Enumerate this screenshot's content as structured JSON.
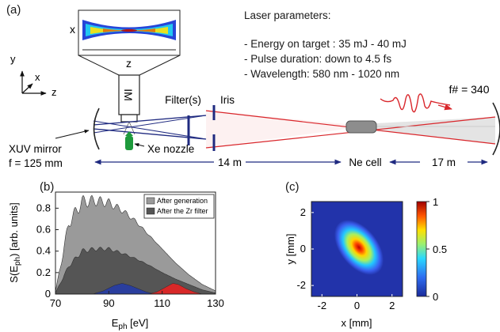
{
  "panel_a": {
    "label": "(a)",
    "laser_params": {
      "title": "Laser parameters:",
      "lines": [
        "- Energy on target : 35 mJ - 40 mJ",
        "- Pulse duration: down to 4.5 fs",
        "- Wavelength: 580 nm - 1020 nm"
      ]
    },
    "inset": {
      "x_label": "x",
      "z_label": "z"
    },
    "im_label": "IM",
    "axes": {
      "y": "y",
      "x": "x",
      "z": "z"
    },
    "fnumber": "f# = 340",
    "filters_label": "Filter(s)",
    "iris_label": "Iris",
    "xuv_mirror_label": "XUV mirror",
    "focal_label": "f = 125 mm",
    "nozzle_label": "Xe nozzle",
    "dist_left": "14 m",
    "cell_label": "Ne cell",
    "dist_right": "17 m",
    "colors": {
      "beam_red": "#d9262b",
      "beam_blue": "#1f2a80",
      "nozzle": "#1e9a3c"
    }
  },
  "panel_b": {
    "label": "(b)",
    "chart_data": {
      "type": "area",
      "x": [
        70,
        75,
        80,
        85,
        90,
        95,
        100,
        105,
        110,
        115,
        120,
        125,
        130
      ],
      "series": [
        {
          "name": "After generation",
          "color": "#9a9a9a",
          "values": [
            0.02,
            0.66,
            0.86,
            0.87,
            0.85,
            0.78,
            0.68,
            0.55,
            0.42,
            0.29,
            0.18,
            0.09,
            0.03
          ]
        },
        {
          "name": "After the Zr filter",
          "color": "#555555",
          "values": [
            0.01,
            0.26,
            0.4,
            0.42,
            0.42,
            0.38,
            0.33,
            0.27,
            0.2,
            0.14,
            0.09,
            0.04,
            0.01
          ]
        }
      ],
      "bands": [
        {
          "color": "#2a3e9e",
          "x": [
            84,
            88,
            92,
            95,
            98,
            101,
            104,
            107
          ],
          "values": [
            0,
            0.03,
            0.08,
            0.1,
            0.08,
            0.05,
            0.02,
            0
          ]
        },
        {
          "color": "#d82828",
          "x": [
            105,
            108,
            111,
            114,
            116,
            119,
            122,
            125
          ],
          "values": [
            0,
            0.02,
            0.06,
            0.1,
            0.09,
            0.05,
            0.02,
            0
          ]
        }
      ],
      "xlabel": "E",
      "xlabel_sub": "ph",
      "xlabel_unit": " [eV]",
      "ylabel": "S(E",
      "ylabel_sub": "ph",
      "ylabel_unit": ") [arb. units]",
      "xticks": [
        70,
        90,
        110,
        130
      ],
      "xtick_labels": [
        "70",
        "90",
        "110",
        "130"
      ],
      "yticks": [
        0,
        0.2,
        0.4,
        0.6,
        0.8
      ],
      "ytick_labels": [
        "0",
        "0.2",
        "0.4",
        "0.6",
        "0.8"
      ],
      "xlim": [
        70,
        130
      ],
      "ylim": [
        0,
        0.95
      ],
      "legend": [
        "After generation",
        "After the Zr filter"
      ]
    }
  },
  "panel_c": {
    "label": "(c)",
    "chart_data": {
      "type": "heatmap",
      "xlabel": "x [mm]",
      "ylabel": "y [mm]",
      "xticks": [
        -2,
        0,
        2
      ],
      "xtick_labels": [
        "-2",
        "0",
        "2"
      ],
      "yticks": [
        2,
        0,
        -2
      ],
      "ytick_labels": [
        "2",
        "0",
        "-2"
      ],
      "colorbar_ticks": [
        1,
        0.5,
        0
      ],
      "colorbar_labels": [
        "1",
        "0.5",
        "0"
      ],
      "xlim": [
        -2.6,
        2.6
      ],
      "ylim": [
        -2.6,
        2.6
      ]
    }
  }
}
